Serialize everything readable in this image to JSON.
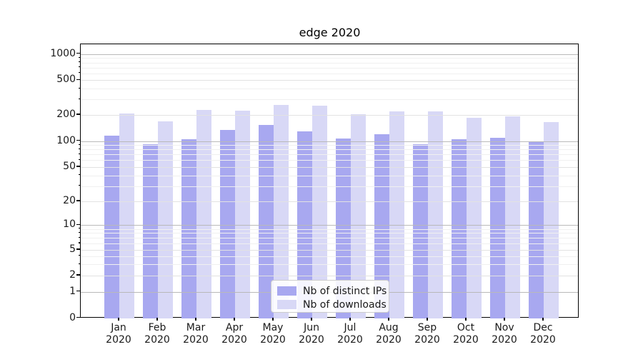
{
  "figure": {
    "title": "edge 2020"
  },
  "legend": {
    "items": [
      {
        "label": "Nb of distinct IPs",
        "swatch": "dark-periwinkle"
      },
      {
        "label": "Nb of downloads",
        "swatch": "light-periwinkle"
      }
    ]
  },
  "colors": {
    "distinct_ips": "#a8a8f0",
    "downloads": "#d8d8f6",
    "grid_power10": "#b9b9b9",
    "grid_labeled": "#e2e2e2",
    "grid_minor": "#f0f0f0"
  },
  "chart_data": {
    "type": "bar",
    "title": "edge 2020",
    "categories": [
      "Jan 2020",
      "Feb 2020",
      "Mar 2020",
      "Apr 2020",
      "May 2020",
      "Jun 2020",
      "Jul 2020",
      "Aug 2020",
      "Sep 2020",
      "Oct 2020",
      "Nov 2020",
      "Dec 2020"
    ],
    "x_tick_line1": [
      "Jan",
      "Feb",
      "Mar",
      "Apr",
      "May",
      "Jun",
      "Jul",
      "Aug",
      "Sep",
      "Oct",
      "Nov",
      "Dec"
    ],
    "x_tick_line2": "2020",
    "series": [
      {
        "name": "Nb of distinct IPs",
        "color": "#a8a8f0",
        "values": [
          115,
          93,
          105,
          135,
          153,
          129,
          108,
          120,
          92,
          105,
          109,
          98
        ]
      },
      {
        "name": "Nb of downloads",
        "color": "#d8d8f6",
        "values": [
          206,
          168,
          228,
          225,
          262,
          255,
          202,
          221,
          220,
          185,
          192,
          166
        ]
      }
    ],
    "xlabel": "",
    "ylabel": "",
    "yscale": "symlog",
    "yticks": [
      0,
      1,
      2,
      5,
      10,
      20,
      50,
      100,
      200,
      500,
      1000
    ],
    "minor_yticks": [
      3,
      4,
      6,
      7,
      8,
      9,
      30,
      40,
      60,
      70,
      80,
      90,
      300,
      400,
      600,
      700,
      800,
      900
    ],
    "ylim": [
      0,
      1300
    ],
    "grid": "horizontal major and minor",
    "legend_position": "lower center inside plot",
    "bar_width_fraction": 0.4
  }
}
